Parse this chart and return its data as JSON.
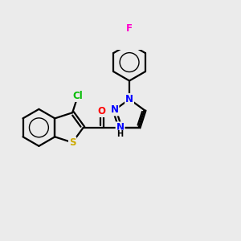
{
  "background_color": "#ebebeb",
  "bond_color": "#000000",
  "bond_width": 1.6,
  "atom_colors": {
    "Cl": "#00bb00",
    "S": "#ccaa00",
    "O": "#ff0000",
    "N": "#0000ff",
    "F": "#ff00cc",
    "C": "#000000"
  },
  "font_size": 8.5,
  "fig_width": 3.0,
  "fig_height": 3.0,
  "dpi": 100,
  "xlim": [
    0,
    10
  ],
  "ylim": [
    2.5,
    8.5
  ]
}
